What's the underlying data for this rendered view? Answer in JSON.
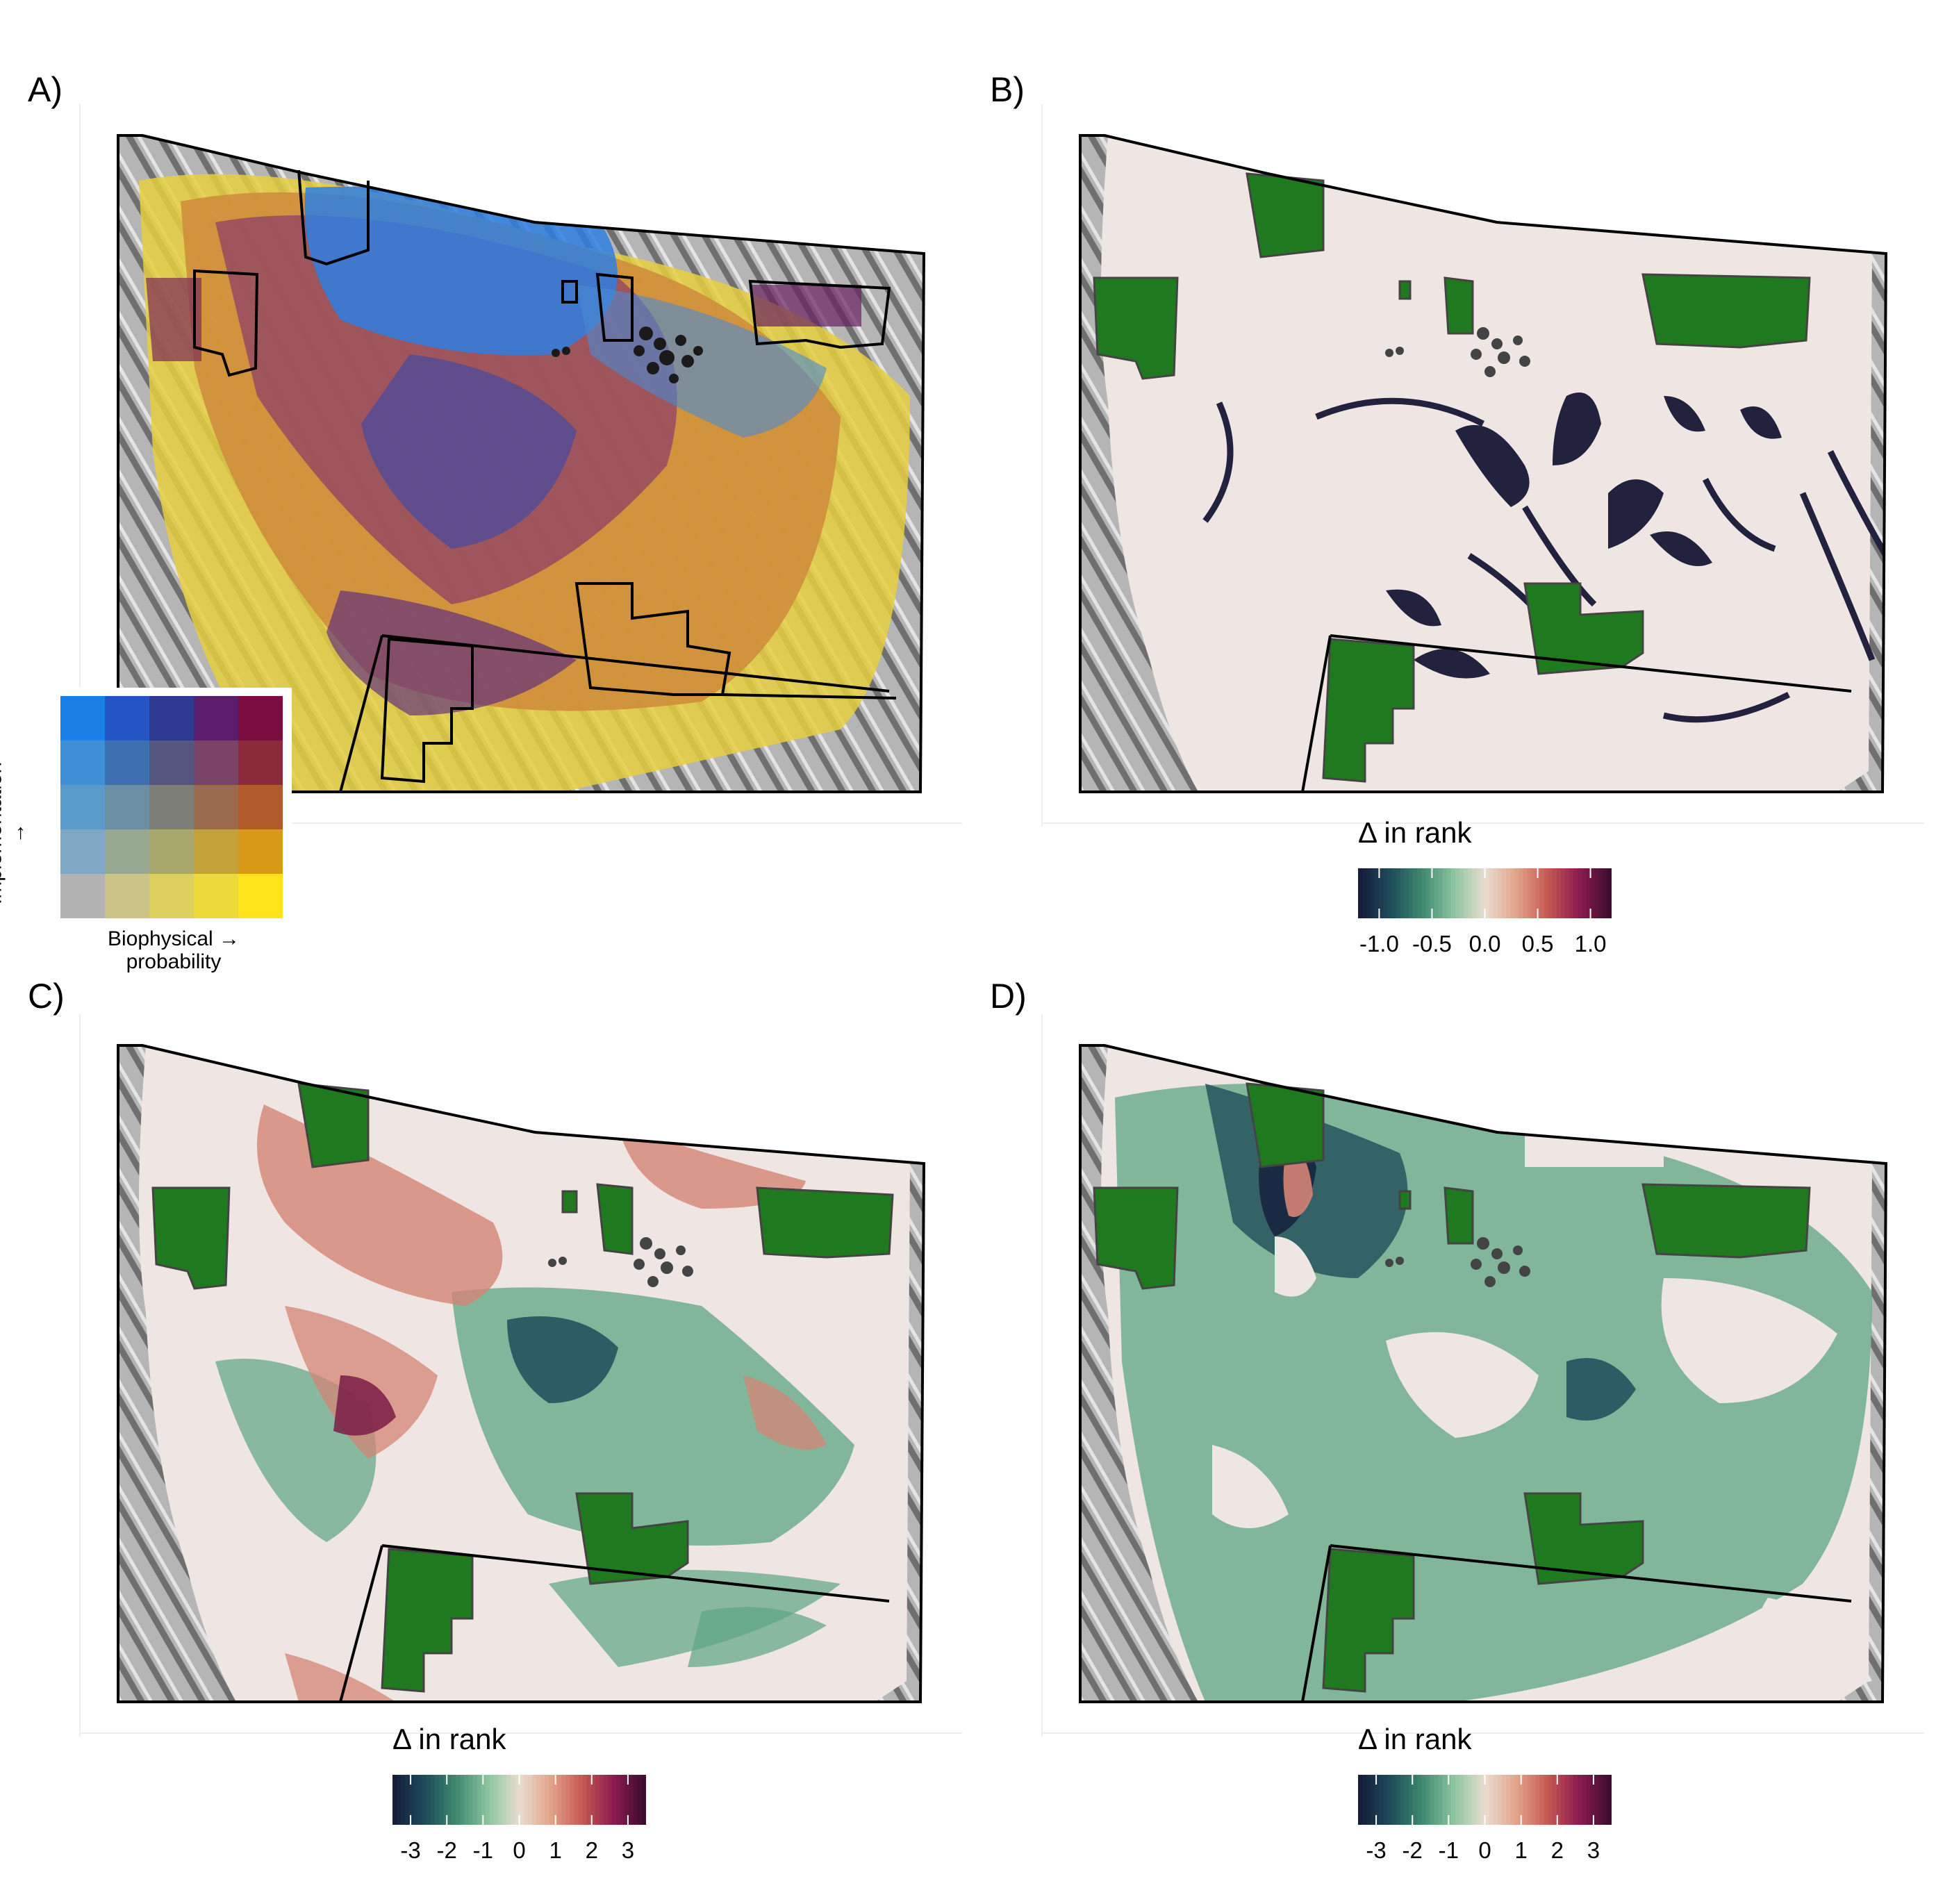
{
  "panels": {
    "a": {
      "label": "A)"
    },
    "b": {
      "label": "B)"
    },
    "c": {
      "label": "C)"
    },
    "d": {
      "label": "D)"
    }
  },
  "bivariate_legend": {
    "y_axis_label": "Implementation →\nprobability",
    "x_axis_label": "Biophysical →\nprobability",
    "grid_rows_top_to_bottom": [
      [
        "#1a7fe6",
        "#2356c4",
        "#2e3a8f",
        "#5a1d6e",
        "#7a0c3f"
      ],
      [
        "#3f8fd6",
        "#3e6fb0",
        "#555680",
        "#7a4468",
        "#8a2a3a"
      ],
      [
        "#5a9bcc",
        "#6a8fa3",
        "#7e7e78",
        "#9c6a4e",
        "#b25a2a"
      ],
      [
        "#7fa8c4",
        "#96a892",
        "#a8a86c",
        "#c4a23a",
        "#d99a1a"
      ],
      [
        "#b3b3b3",
        "#ccc487",
        "#dcd05c",
        "#ecd93a",
        "#ffe31a"
      ]
    ]
  },
  "rank_legend_b": {
    "title": "Δ in rank",
    "ticks": [
      "-1.0",
      "-0.5",
      "0.0",
      "0.5",
      "1.0"
    ],
    "range": [
      -1.2,
      1.2
    ],
    "tick_values": [
      -1.0,
      -0.5,
      0.0,
      0.5,
      1.0
    ]
  },
  "rank_legend_c": {
    "title": "Δ in rank",
    "ticks": [
      "-3",
      "-2",
      "-1",
      "0",
      "1",
      "2",
      "3"
    ],
    "range": [
      -3.5,
      3.5
    ],
    "tick_values": [
      -3,
      -2,
      -1,
      0,
      1,
      2,
      3
    ]
  },
  "rank_legend_d": {
    "title": "Δ in rank",
    "ticks": [
      "-3",
      "-2",
      "-1",
      "0",
      "1",
      "2",
      "3"
    ],
    "range": [
      -3.5,
      3.5
    ],
    "tick_values": [
      -3,
      -2,
      -1,
      0,
      1,
      2,
      3
    ]
  },
  "colors": {
    "protected_area_fill": "#1f7a1f",
    "map_background": "#efe6e3",
    "hillshade": "#9e9e9e",
    "divergent_scale": [
      "#151d3b",
      "#1f4d5a",
      "#3f8a70",
      "#8cc4a0",
      "#e8ddd0",
      "#e4a48c",
      "#c65a52",
      "#8e1c50",
      "#3d0d2e"
    ]
  }
}
